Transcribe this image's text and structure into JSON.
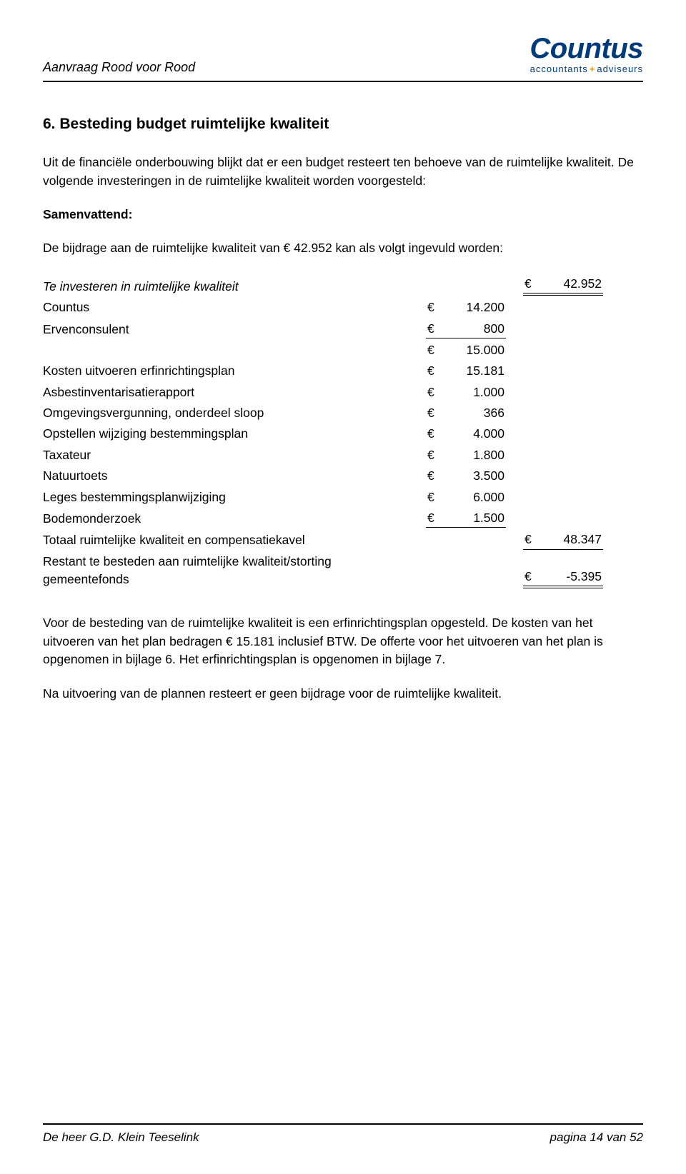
{
  "header": {
    "title": "Aanvraag Rood voor Rood",
    "logo_main": "Countus",
    "logo_sub_a": "accountants",
    "logo_sub_plus": "+",
    "logo_sub_b": "adviseurs"
  },
  "colors": {
    "logo_navy": "#003a78",
    "logo_orange": "#f08a00",
    "rule": "#000000",
    "text": "#000000",
    "background": "#ffffff"
  },
  "section": {
    "heading": "6. Besteding budget ruimtelijke kwaliteit",
    "para1": "Uit de financiële onderbouwing blijkt dat er een budget resteert ten behoeve van de ruimtelijke kwaliteit. De volgende investeringen in de ruimtelijke kwaliteit worden voorgesteld:",
    "samenvattend_label": "Samenvattend:",
    "para2": "De bijdrage aan de ruimtelijke kwaliteit van € 42.952 kan als volgt ingevuld worden:"
  },
  "table": {
    "currency": "€",
    "rows": [
      {
        "label": "Te investeren in ruimtelijke kwaliteit",
        "col2": null,
        "col3": "42.952",
        "label_italic": true,
        "col3_style": "double"
      },
      {
        "label": "Countus",
        "col2": "14.200",
        "col3": null
      },
      {
        "label": "Ervenconsulent",
        "col2": "800",
        "col3": null,
        "col2_style": "single"
      },
      {
        "label": "",
        "col2": "15.000",
        "col3": null
      },
      {
        "label": "Kosten uitvoeren erfinrichtingsplan",
        "col2": "15.181",
        "col3": null
      },
      {
        "label": "Asbestinventarisatierapport",
        "col2": "1.000",
        "col3": null
      },
      {
        "label": "Omgevingsvergunning, onderdeel sloop",
        "col2": "366",
        "col3": null
      },
      {
        "label": "Opstellen wijziging bestemmingsplan",
        "col2": "4.000",
        "col3": null
      },
      {
        "label": "Taxateur",
        "col2": "1.800",
        "col3": null
      },
      {
        "label": "Natuurtoets",
        "col2": "3.500",
        "col3": null
      },
      {
        "label": "Leges bestemmingsplanwijziging",
        "col2": "6.000",
        "col3": null
      },
      {
        "label": "Bodemonderzoek",
        "col2": "1.500",
        "col3": null,
        "col2_style": "single"
      },
      {
        "label": "Totaal ruimtelijke kwaliteit en compensatiekavel",
        "col2": null,
        "col3": "48.347",
        "col3_style": "single"
      },
      {
        "label": "Restant te besteden aan ruimtelijke kwaliteit/storting gemeentefonds",
        "col2": null,
        "col3": "-5.395",
        "col3_style": "double"
      }
    ]
  },
  "closing": {
    "para1": "Voor de besteding van de ruimtelijke kwaliteit is een erfinrichtingsplan opgesteld. De kosten van het uitvoeren van het plan bedragen € 15.181 inclusief BTW. De offerte voor het uitvoeren van het plan is opgenomen in bijlage 6. Het erfinrichtingsplan is opgenomen in bijlage 7.",
    "para2": "Na uitvoering van de plannen resteert er geen bijdrage voor de ruimtelijke kwaliteit."
  },
  "footer": {
    "left": "De heer G.D. Klein Teeselink",
    "right": "pagina 14 van 52"
  }
}
